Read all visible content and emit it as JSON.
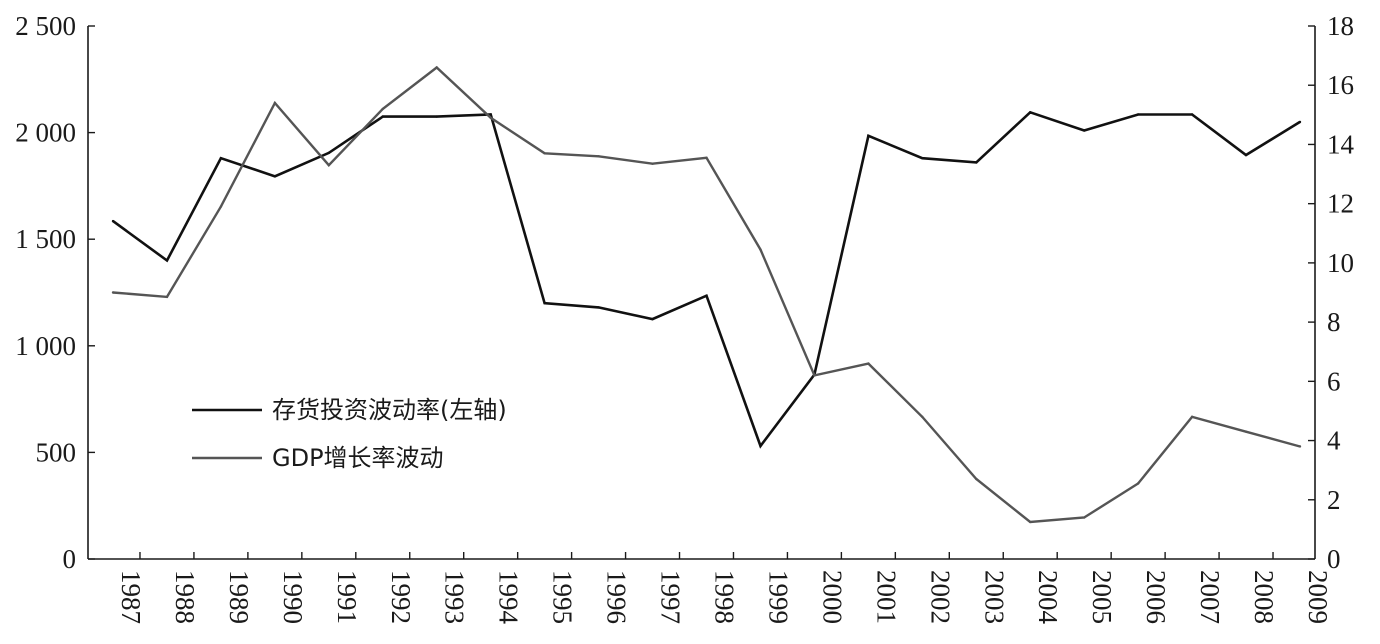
{
  "chart_data": {
    "type": "line",
    "title": "",
    "xlabel": "",
    "ylabel": "",
    "y2label": "",
    "categories": [
      "1987",
      "1988",
      "1989",
      "1990",
      "1991",
      "1992",
      "1993",
      "1994",
      "1995",
      "1996",
      "1997",
      "1998",
      "1999",
      "2000",
      "2001",
      "2002",
      "2003",
      "2004",
      "2005",
      "2006",
      "2007",
      "2008",
      "2009"
    ],
    "ylim": [
      0,
      2500
    ],
    "yticks": [
      0,
      500,
      1000,
      1500,
      2000,
      2500
    ],
    "ytick_labels": [
      "0",
      "500",
      "1 000",
      "1 500",
      "2 000",
      "2 500"
    ],
    "y2lim": [
      0,
      18
    ],
    "y2ticks": [
      0,
      2,
      4,
      6,
      8,
      10,
      12,
      14,
      16,
      18
    ],
    "y2tick_labels": [
      "0",
      "2",
      "4",
      "6",
      "8",
      "10",
      "12",
      "14",
      "16",
      "18"
    ],
    "grid": false,
    "legend_position": "lower-left",
    "series": [
      {
        "name": "存货投资波动率(左轴)",
        "axis": "left",
        "color": "#111111",
        "values": [
          1585,
          1400,
          1880,
          1795,
          1905,
          2075,
          2075,
          2085,
          1200,
          1180,
          1125,
          1235,
          530,
          865,
          1985,
          1880,
          1860,
          2095,
          2010,
          2085,
          2085,
          1895,
          2050
        ]
      },
      {
        "name": "GDP增长率波动",
        "axis": "right",
        "color": "#555555",
        "values": [
          9.0,
          8.85,
          11.9,
          15.4,
          13.3,
          15.2,
          16.6,
          14.9,
          13.7,
          13.6,
          13.35,
          13.55,
          10.45,
          6.2,
          6.6,
          4.8,
          2.7,
          1.25,
          1.4,
          2.55,
          4.8,
          4.3,
          3.8
        ]
      }
    ]
  }
}
